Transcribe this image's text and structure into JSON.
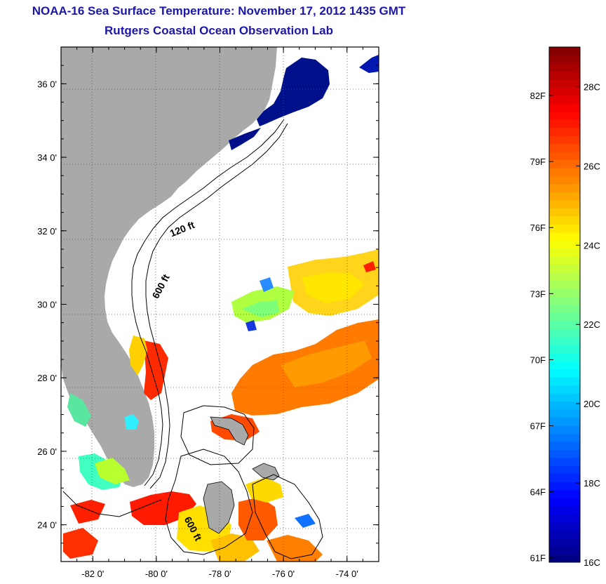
{
  "title": {
    "line1": "NOAA-16 Sea Surface Temperature:  November 17, 2012 1435 GMT",
    "line2": "Rutgers Coastal Ocean Observation Lab"
  },
  "map": {
    "lat_range": [
      23,
      37
    ],
    "lon_range": [
      -83,
      -73
    ],
    "lat_ticks": [
      {
        "value": 24,
        "label": "24 0'"
      },
      {
        "value": 26,
        "label": "26 0'"
      },
      {
        "value": 28,
        "label": "28 0'"
      },
      {
        "value": 30,
        "label": "30 0'"
      },
      {
        "value": 32,
        "label": "32 0'"
      },
      {
        "value": 34,
        "label": "34 0'"
      },
      {
        "value": 36,
        "label": "36 0'"
      }
    ],
    "lon_ticks": [
      {
        "value": -82,
        "label": "-82 0'"
      },
      {
        "value": -80,
        "label": "-80 0'"
      },
      {
        "value": -78,
        "label": "-78 0'"
      },
      {
        "value": -76,
        "label": "-76 0'"
      },
      {
        "value": -74,
        "label": "-74 0'"
      }
    ],
    "contour_labels": [
      "120 ft",
      "600 ft",
      "600 ft"
    ],
    "colors": {
      "land": "#a9a9a9",
      "water_cloud": "#ffffff",
      "grid": "#555555"
    }
  },
  "colorbar": {
    "range_c": [
      16,
      29
    ],
    "celsius_labels": [
      "16C",
      "18C",
      "20C",
      "22C",
      "24C",
      "26C",
      "28C"
    ],
    "fahrenheit_labels": [
      "61F",
      "64F",
      "67F",
      "70F",
      "73F",
      "76F",
      "79F",
      "82F"
    ],
    "colormap": "jet"
  }
}
